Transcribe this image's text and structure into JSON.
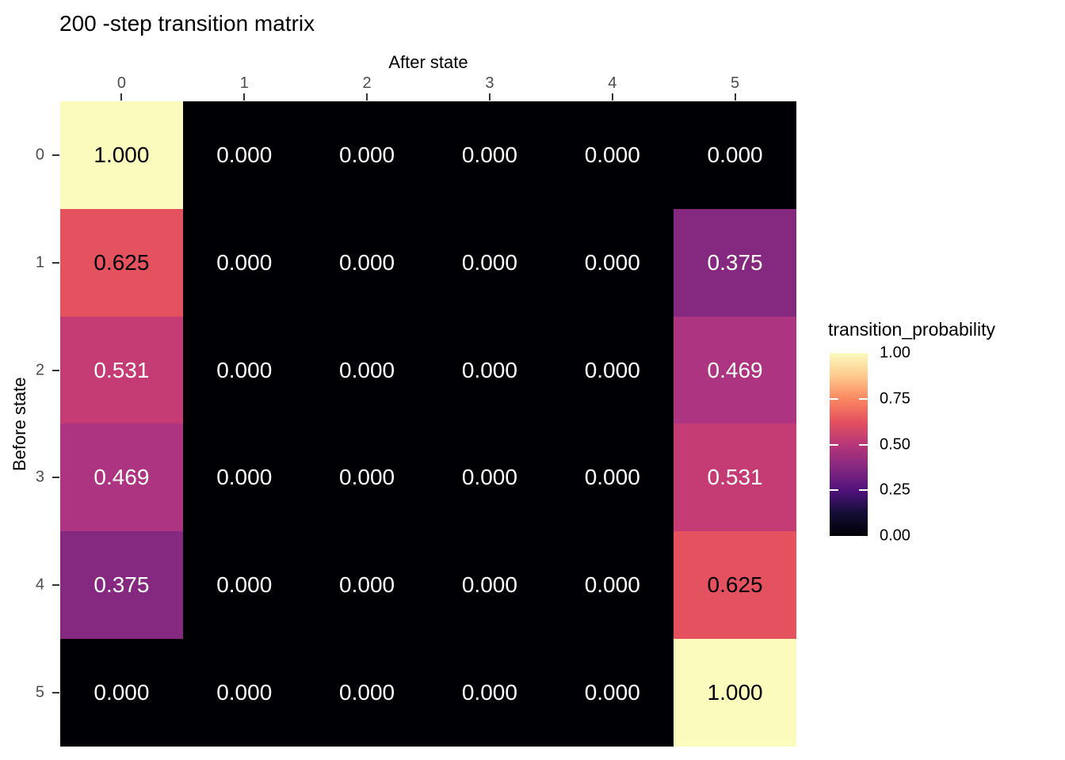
{
  "title": "200 -step transition matrix",
  "x_axis": {
    "title": "After state",
    "tick_labels": [
      "0",
      "1",
      "2",
      "3",
      "4",
      "5"
    ]
  },
  "y_axis": {
    "title": "Before state",
    "tick_labels": [
      "0",
      "1",
      "2",
      "3",
      "4",
      "5"
    ]
  },
  "legend": {
    "title": "transition_probability",
    "tick_labels": [
      "1.00",
      "0.75",
      "0.50",
      "0.25",
      "0.00"
    ],
    "tick_values": [
      1.0,
      0.75,
      0.5,
      0.25,
      0.0
    ],
    "dash_tick_values": [
      0.75,
      0.5,
      0.25
    ],
    "position": "right"
  },
  "chart_data": {
    "type": "heatmap",
    "title": "200 -step transition matrix",
    "xlabel": "After state",
    "ylabel": "Before state",
    "x": [
      0,
      1,
      2,
      3,
      4,
      5
    ],
    "y": [
      0,
      1,
      2,
      3,
      4,
      5
    ],
    "values": [
      [
        1.0,
        0.0,
        0.0,
        0.0,
        0.0,
        0.0
      ],
      [
        0.625,
        0.0,
        0.0,
        0.0,
        0.0,
        0.375
      ],
      [
        0.531,
        0.0,
        0.0,
        0.0,
        0.0,
        0.469
      ],
      [
        0.469,
        0.0,
        0.0,
        0.0,
        0.0,
        0.531
      ],
      [
        0.375,
        0.0,
        0.0,
        0.0,
        0.0,
        0.625
      ],
      [
        0.0,
        0.0,
        0.0,
        0.0,
        0.0,
        1.0
      ]
    ],
    "value_decimals": 3,
    "grid": false,
    "colorbar_range": [
      0,
      1
    ],
    "palette": "magma",
    "value_colors": {
      "0": "#000004",
      "0.375": "#852880",
      "0.469": "#AC3480",
      "0.531": "#C53C74",
      "0.625": "#E4515F",
      "1": "#FBFBBE"
    },
    "gradient_stops": [
      [
        0,
        "#000004"
      ],
      [
        0.125,
        "#140E36"
      ],
      [
        0.25,
        "#51127C"
      ],
      [
        0.375,
        "#852880"
      ],
      [
        0.5,
        "#B73779"
      ],
      [
        0.625,
        "#E4515F"
      ],
      [
        0.75,
        "#FB8861"
      ],
      [
        0.875,
        "#FEC98D"
      ],
      [
        1,
        "#FBFBBE"
      ]
    ],
    "label_dark_text_threshold": 0.6,
    "label_dark_text_color": "#000000",
    "label_light_text_color": "#ffffff"
  }
}
